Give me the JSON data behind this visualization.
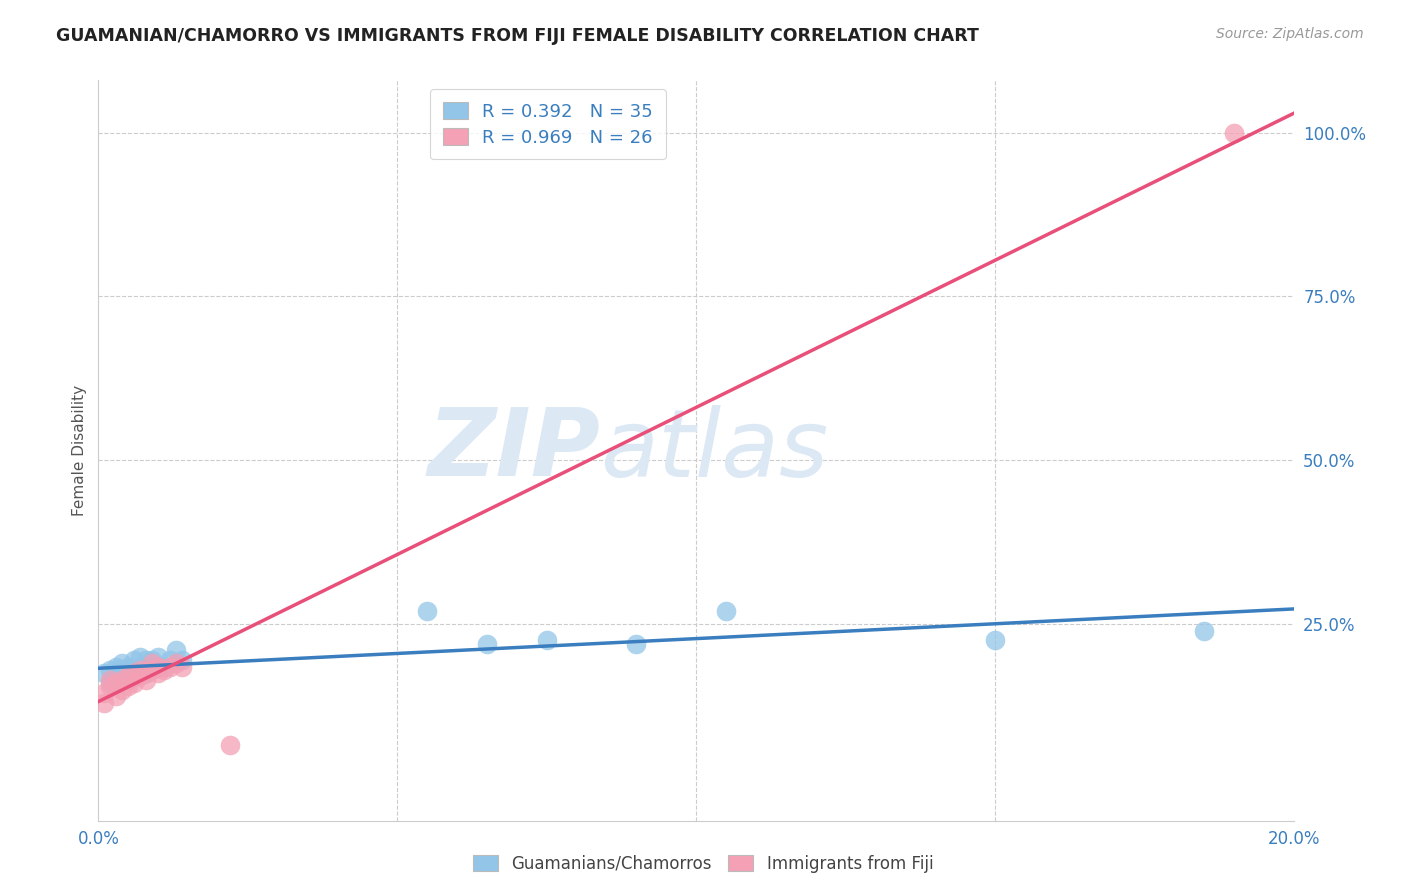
{
  "title": "GUAMANIAN/CHAMORRO VS IMMIGRANTS FROM FIJI FEMALE DISABILITY CORRELATION CHART",
  "source": "Source: ZipAtlas.com",
  "ylabel": "Female Disability",
  "xlim": [
    0,
    0.2
  ],
  "ylim": [
    -0.05,
    1.08
  ],
  "color_blue": "#92c5e8",
  "color_pink": "#f4a0b5",
  "line_blue": "#3a7ebf",
  "line_pink": "#e8507a",
  "watermark_zip": "ZIP",
  "watermark_atlas": "atlas",
  "watermark_color": "#dce9f5",
  "guamanian_x": [
    0.001,
    0.002,
    0.002,
    0.003,
    0.003,
    0.003,
    0.004,
    0.004,
    0.004,
    0.005,
    0.005,
    0.005,
    0.006,
    0.006,
    0.006,
    0.007,
    0.007,
    0.007,
    0.008,
    0.008,
    0.009,
    0.009,
    0.01,
    0.01,
    0.011,
    0.012,
    0.013,
    0.014,
    0.055,
    0.065,
    0.075,
    0.09,
    0.105,
    0.15,
    0.185
  ],
  "guamanian_y": [
    0.175,
    0.18,
    0.16,
    0.175,
    0.165,
    0.185,
    0.17,
    0.18,
    0.19,
    0.165,
    0.175,
    0.185,
    0.17,
    0.18,
    0.195,
    0.175,
    0.185,
    0.2,
    0.195,
    0.175,
    0.185,
    0.195,
    0.185,
    0.2,
    0.185,
    0.195,
    0.21,
    0.195,
    0.27,
    0.22,
    0.225,
    0.22,
    0.27,
    0.225,
    0.24
  ],
  "fiji_x": [
    0.001,
    0.001,
    0.002,
    0.002,
    0.003,
    0.003,
    0.004,
    0.004,
    0.005,
    0.005,
    0.006,
    0.006,
    0.007,
    0.007,
    0.008,
    0.008,
    0.009,
    0.009,
    0.01,
    0.01,
    0.011,
    0.012,
    0.013,
    0.014,
    0.022,
    0.19
  ],
  "fiji_y": [
    0.13,
    0.145,
    0.155,
    0.165,
    0.14,
    0.16,
    0.15,
    0.165,
    0.155,
    0.17,
    0.16,
    0.175,
    0.17,
    0.18,
    0.165,
    0.175,
    0.18,
    0.19,
    0.175,
    0.185,
    0.18,
    0.185,
    0.19,
    0.185,
    0.065,
    1.0
  ],
  "yticks": [
    0.25,
    0.5,
    0.75,
    1.0
  ],
  "ytick_labels": [
    "25.0%",
    "50.0%",
    "75.0%",
    "100.0%"
  ],
  "xtick_positions": [
    0.0,
    0.05,
    0.1,
    0.15,
    0.2
  ],
  "xtick_labels": [
    "0.0%",
    "",
    "",
    "",
    "20.0%"
  ]
}
